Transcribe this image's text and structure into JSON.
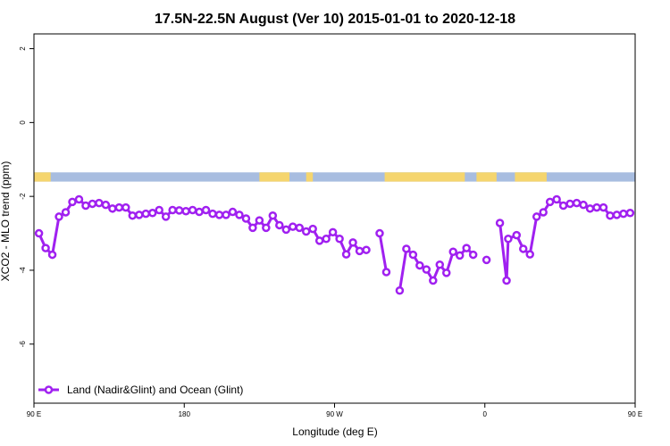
{
  "chart_data": {
    "type": "line",
    "title": "17.5N-22.5N August (Ver 10)   2015-01-01 to 2020-12-18",
    "xlabel": "Longitude (deg E)",
    "ylabel": "XCO2 - MLO trend (ppm)",
    "xlim": [
      90,
      450
    ],
    "ylim": [
      -7.6,
      2.4
    ],
    "x_ticks": [
      {
        "value": 90,
        "label": "90 E"
      },
      {
        "value": 180,
        "label": "180"
      },
      {
        "value": 270,
        "label": "90 W"
      },
      {
        "value": 360,
        "label": "0"
      },
      {
        "value": 450,
        "label": "90 E"
      },
      {
        "value": 540,
        "label": "180"
      }
    ],
    "y_ticks": [
      {
        "value": 2,
        "label": "2"
      },
      {
        "value": 0,
        "label": "0"
      },
      {
        "value": -2,
        "label": "-2"
      },
      {
        "value": -4,
        "label": "-4"
      },
      {
        "value": -6,
        "label": "-6"
      }
    ],
    "legend_position": "bottom-left",
    "series": [
      {
        "name": "Land (Nadir&Glint) and Ocean (Glint)",
        "color": "#a020f0",
        "points": [
          [
            93,
            -3.0
          ],
          [
            97,
            -3.4
          ],
          [
            101,
            -3.58
          ],
          [
            105,
            -2.55
          ],
          [
            109,
            -2.43
          ],
          [
            113,
            -2.15
          ],
          [
            117,
            -2.08
          ],
          [
            121,
            -2.25
          ],
          [
            125,
            -2.2
          ],
          [
            129,
            -2.18
          ],
          [
            133,
            -2.23
          ],
          [
            137,
            -2.33
          ],
          [
            141,
            -2.3
          ],
          [
            145,
            -2.3
          ],
          [
            149,
            -2.52
          ],
          [
            153,
            -2.5
          ],
          [
            157,
            -2.47
          ],
          [
            161,
            -2.45
          ],
          [
            165,
            -2.37
          ],
          [
            169,
            -2.55
          ],
          [
            173,
            -2.37
          ],
          [
            177,
            -2.38
          ],
          [
            181,
            -2.4
          ],
          [
            185,
            -2.37
          ],
          [
            189,
            -2.42
          ],
          [
            193,
            -2.37
          ],
          [
            197,
            -2.47
          ],
          [
            201,
            -2.5
          ],
          [
            205,
            -2.5
          ],
          [
            209,
            -2.42
          ],
          [
            213,
            -2.5
          ],
          [
            217,
            -2.6
          ],
          [
            221,
            -2.85
          ],
          [
            225,
            -2.65
          ],
          [
            229,
            -2.85
          ],
          [
            233,
            -2.52
          ],
          [
            237,
            -2.78
          ],
          [
            241,
            -2.9
          ],
          [
            245,
            -2.82
          ],
          [
            249,
            -2.85
          ],
          [
            253,
            -2.95
          ],
          [
            257,
            -2.88
          ],
          [
            261,
            -3.2
          ],
          [
            265,
            -3.15
          ],
          [
            269,
            -2.97
          ],
          [
            273,
            -3.15
          ],
          [
            277,
            -3.57
          ],
          [
            281,
            -3.25
          ],
          [
            285,
            -3.48
          ],
          [
            289,
            -3.45
          ],
          null,
          [
            297,
            -3.0
          ],
          [
            301,
            -4.05
          ],
          null,
          [
            309,
            -4.55
          ],
          [
            313,
            -3.42
          ],
          [
            317,
            -3.58
          ],
          [
            321,
            -3.87
          ],
          [
            325,
            -3.98
          ],
          [
            329,
            -4.28
          ],
          [
            333,
            -3.85
          ],
          [
            337,
            -4.07
          ],
          [
            341,
            -3.5
          ],
          [
            345,
            -3.6
          ],
          [
            349,
            -3.4
          ],
          [
            353,
            -3.58
          ],
          null,
          [
            361,
            -3.72
          ],
          null,
          [
            369,
            -2.72
          ],
          [
            373,
            -4.28
          ],
          [
            374,
            -3.15
          ],
          [
            379,
            -3.05
          ],
          [
            383,
            -3.42
          ],
          [
            387,
            -3.57
          ],
          [
            391,
            -2.55
          ],
          [
            395,
            -2.43
          ],
          [
            399,
            -2.15
          ],
          [
            403,
            -2.08
          ],
          [
            407,
            -2.25
          ],
          [
            411,
            -2.2
          ],
          [
            415,
            -2.18
          ],
          [
            419,
            -2.23
          ],
          [
            423,
            -2.33
          ],
          [
            427,
            -2.3
          ],
          [
            431,
            -2.3
          ],
          [
            435,
            -2.52
          ],
          [
            439,
            -2.5
          ],
          [
            443,
            -2.47
          ],
          [
            447,
            -2.45
          ]
        ]
      }
    ],
    "map_strip": {
      "y_range": [
        -1.6,
        -1.35
      ],
      "ocean_color": "#a8bde0",
      "land_color": "#f5d56e",
      "land_segments": [
        [
          90,
          100
        ],
        [
          225,
          243
        ],
        [
          253,
          257
        ],
        [
          300,
          348
        ],
        [
          355,
          367
        ],
        [
          378,
          397
        ]
      ]
    }
  }
}
